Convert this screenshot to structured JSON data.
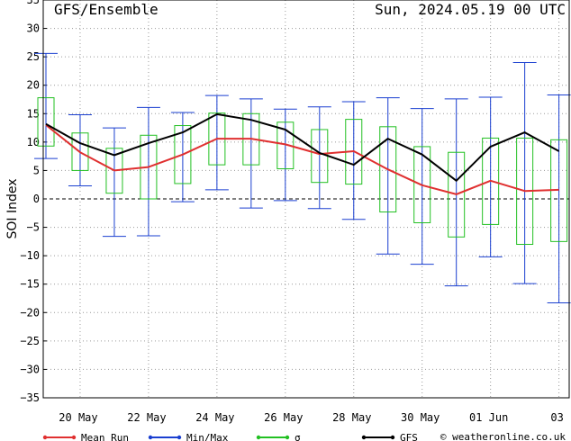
{
  "chart_data": {
    "type": "line",
    "title_left": "GFS/Ensemble",
    "title_right": "Sun, 2024.05.19  00 UTC",
    "ylabel": "SOI Index",
    "ylim": [
      -35,
      35
    ],
    "yticks": [
      35,
      30,
      25,
      20,
      15,
      10,
      5,
      0,
      -5,
      -10,
      -15,
      -20,
      -25,
      -30,
      -35
    ],
    "x_tick_labels": [
      "20 May",
      "22 May",
      "24 May",
      "26 May",
      "28 May",
      "30 May",
      "01 Jun",
      "03"
    ],
    "x_tick_positions": [
      1,
      3,
      5,
      7,
      9,
      11,
      13,
      15
    ],
    "xlim": [
      0,
      15.3
    ],
    "grid": true,
    "legend_position": "bottom",
    "legend": [
      {
        "label": "Mean Run",
        "color": "#e03030"
      },
      {
        "label": "Min/Max",
        "color": "#1a3fd0"
      },
      {
        "label": "σ",
        "color": "#22c022"
      },
      {
        "label": "GFS",
        "color": "#000000"
      }
    ],
    "copyright": "© weatheronline.co.uk",
    "x": [
      0,
      1,
      2,
      3,
      4,
      5,
      6,
      7,
      8,
      9,
      10,
      11,
      12,
      13,
      14,
      15
    ],
    "mean": [
      13.0,
      8.2,
      5.0,
      5.6,
      7.8,
      10.6,
      10.6,
      9.6,
      7.9,
      8.4,
      5.2,
      2.4,
      0.8,
      3.2,
      1.4,
      1.6
    ],
    "gfs": [
      13.2,
      9.8,
      7.7,
      9.8,
      11.7,
      14.9,
      13.9,
      12.2,
      8.1,
      6.0,
      10.6,
      7.8,
      3.2,
      9.2,
      11.7,
      8.4
    ],
    "max": [
      25.6,
      14.8,
      12.5,
      16.1,
      15.2,
      18.2,
      17.6,
      15.8,
      16.2,
      17.1,
      17.8,
      15.9,
      17.6,
      17.9,
      24.0,
      18.3
    ],
    "min": [
      7.1,
      2.3,
      -6.6,
      -6.5,
      -0.5,
      1.6,
      -1.6,
      -0.3,
      -1.7,
      -3.6,
      -9.7,
      -11.5,
      -15.3,
      -10.2,
      -14.9,
      -18.3
    ],
    "sigma_upper": [
      17.8,
      11.6,
      8.9,
      11.2,
      12.9,
      15.1,
      15.0,
      13.5,
      12.2,
      14.0,
      12.7,
      9.2,
      8.2,
      10.7,
      10.7,
      10.4
    ],
    "sigma_lower": [
      9.3,
      5.0,
      1.0,
      0.0,
      2.7,
      6.0,
      6.0,
      5.3,
      2.9,
      2.6,
      -2.3,
      -4.2,
      -6.7,
      -4.5,
      -8.0,
      -7.5
    ]
  }
}
